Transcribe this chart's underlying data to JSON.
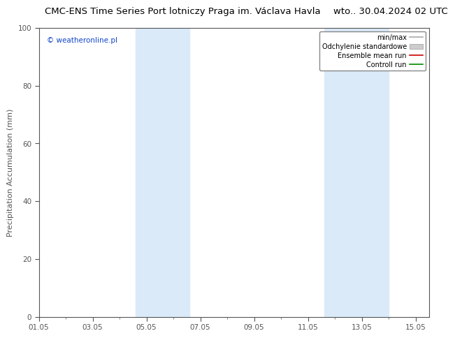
{
  "title": "CMC-ENS Time Series Port lotniczy Praga im. Václava Havla",
  "date_str": "wto.. 30.04.2024 02 UTC",
  "ylabel": "Precipitation Accumulation (mm)",
  "ylim": [
    0,
    100
  ],
  "xlim_start": 0,
  "xlim_end": 14.5,
  "xtick_labels": [
    "01.05",
    "03.05",
    "05.05",
    "07.05",
    "09.05",
    "11.05",
    "13.05",
    "15.05"
  ],
  "xtick_positions": [
    0,
    2,
    4,
    6,
    8,
    10,
    12,
    14
  ],
  "ytick_positions": [
    0,
    20,
    40,
    60,
    80,
    100
  ],
  "ytick_labels": [
    "0",
    "20",
    "40",
    "60",
    "80",
    "100"
  ],
  "shaded_regions": [
    {
      "xmin": 3.6,
      "xmax": 5.6,
      "color": "#daeaf8"
    },
    {
      "xmin": 10.6,
      "xmax": 13.0,
      "color": "#daeaf8"
    }
  ],
  "legend_items": [
    {
      "label": "min/max",
      "color": "#aaaaaa",
      "lw": 1.2,
      "patch": false
    },
    {
      "label": "Odchylenie standardowe",
      "color": "#cccccc",
      "lw": 5,
      "patch": true
    },
    {
      "label": "Ensemble mean run",
      "color": "#cc0000",
      "lw": 1.2,
      "patch": false
    },
    {
      "label": "Controll run",
      "color": "#008800",
      "lw": 1.2,
      "patch": false
    }
  ],
  "watermark": "© weatheronline.pl",
  "watermark_color": "#1144cc",
  "bg_color": "#ffffff",
  "plot_bg_color": "#ffffff",
  "title_fontsize": 9.5,
  "date_fontsize": 9.5,
  "axis_label_fontsize": 8,
  "tick_fontsize": 7.5,
  "legend_fontsize": 7,
  "watermark_fontsize": 7.5,
  "spine_color": "#555555",
  "tick_color": "#555555"
}
